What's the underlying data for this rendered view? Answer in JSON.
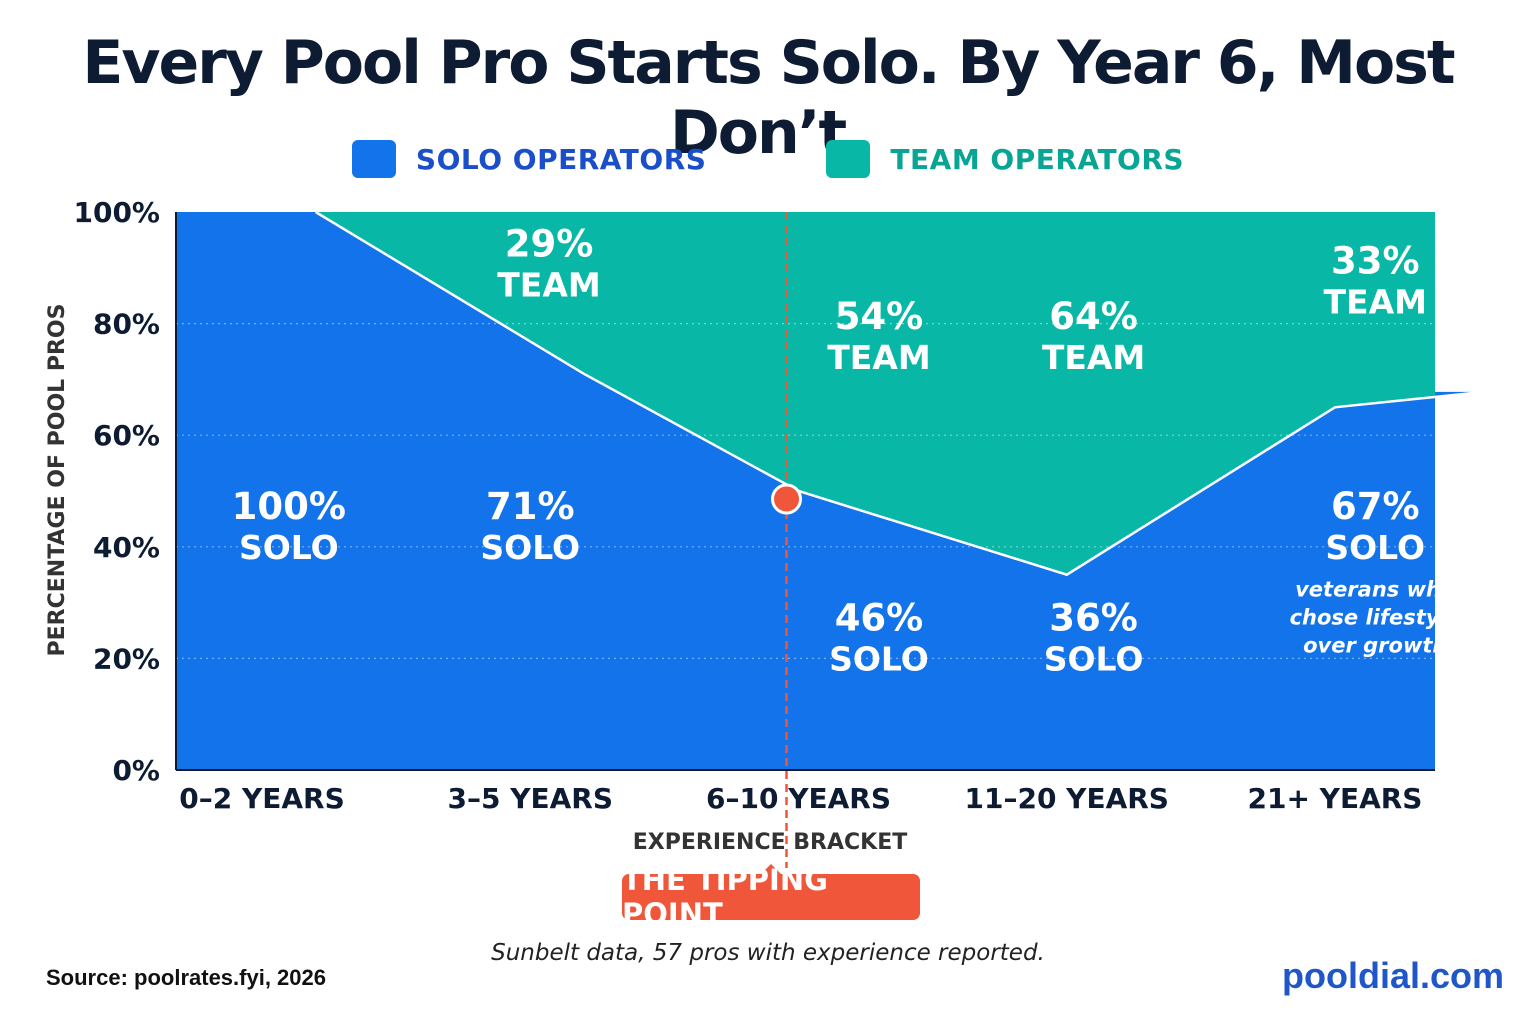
{
  "title": "Every Pool Pro Starts Solo. By Year 6, Most Don’t.",
  "legend": [
    {
      "label": "SOLO OPERATORS",
      "color": "#1273ea"
    },
    {
      "label": "TEAM OPERATORS",
      "color": "#08b7a5"
    }
  ],
  "chart_data": {
    "type": "area",
    "stacked": true,
    "normalized": true,
    "categories": [
      "0–2 YEARS",
      "3–5 YEARS",
      "6–10 YEARS",
      "11–20 YEARS",
      "21+ YEARS"
    ],
    "series": [
      {
        "name": "SOLO OPERATORS",
        "color": "#1273ea",
        "values": [
          100,
          71,
          46,
          36,
          67
        ]
      },
      {
        "name": "TEAM OPERATORS",
        "color": "#08b7a5",
        "values": [
          0,
          29,
          54,
          64,
          33
        ]
      }
    ],
    "xlabel": "EXPERIENCE BRACKET",
    "ylabel": "PERCENTAGE OF POOL PROS",
    "ylim": [
      0,
      100
    ],
    "yticks": [
      "0%",
      "20%",
      "40%",
      "60%",
      "80%",
      "100%"
    ],
    "grid": true,
    "legend_position": "top",
    "boundary_line": [
      100,
      71,
      50,
      35,
      65,
      68
    ],
    "boundary_x": [
      0.2,
      1.2,
      2.0,
      3.0,
      4.0,
      4.6
    ],
    "data_labels": [
      {
        "series": "SOLO OPERATORS",
        "category": "0–2 YEARS",
        "value": "100%",
        "text": "SOLO",
        "x": 0.1,
        "y": 40
      },
      {
        "series": "SOLO OPERATORS",
        "category": "3–5 YEARS",
        "value": "71%",
        "text": "SOLO",
        "x": 1.0,
        "y": 40
      },
      {
        "series": "SOLO OPERATORS",
        "category": "6–10 YEARS",
        "value": "46%",
        "text": "SOLO",
        "x": 2.3,
        "y": 20
      },
      {
        "series": "SOLO OPERATORS",
        "category": "11–20 YEARS",
        "value": "36%",
        "text": "SOLO",
        "x": 3.1,
        "y": 20
      },
      {
        "series": "SOLO OPERATORS",
        "category": "21+ YEARS",
        "value": "67%",
        "text": "SOLO",
        "x": 4.15,
        "y": 40
      },
      {
        "series": "TEAM OPERATORS",
        "category": "3–5 YEARS",
        "value": "29%",
        "text": "TEAM",
        "x": 1.07,
        "y": 87
      },
      {
        "series": "TEAM OPERATORS",
        "category": "6–10 YEARS",
        "value": "54%",
        "text": "TEAM",
        "x": 2.3,
        "y": 74
      },
      {
        "series": "TEAM OPERATORS",
        "category": "11–20 YEARS",
        "value": "64%",
        "text": "TEAM",
        "x": 3.1,
        "y": 74
      },
      {
        "series": "TEAM OPERATORS",
        "category": "21+ YEARS",
        "value": "33%",
        "text": "TEAM",
        "x": 4.15,
        "y": 84
      }
    ],
    "annotations": [
      {
        "text": "veterans who chose lifestyle over growth",
        "lines": [
          "veterans who",
          "chose lifestyle",
          "over growth"
        ],
        "x": 4.15,
        "y": 32
      },
      {
        "text": "THE TIPPING POINT",
        "x": 2.0,
        "y": 50
      }
    ],
    "marker": {
      "x": 2.0,
      "y": 50,
      "color": "#f0563a"
    }
  },
  "callout": "THE TIPPING POINT",
  "note": "Sunbelt data, 57 pros with experience reported.",
  "source": "Source: poolrates.fyi, 2026",
  "brand": "pooldial.com"
}
